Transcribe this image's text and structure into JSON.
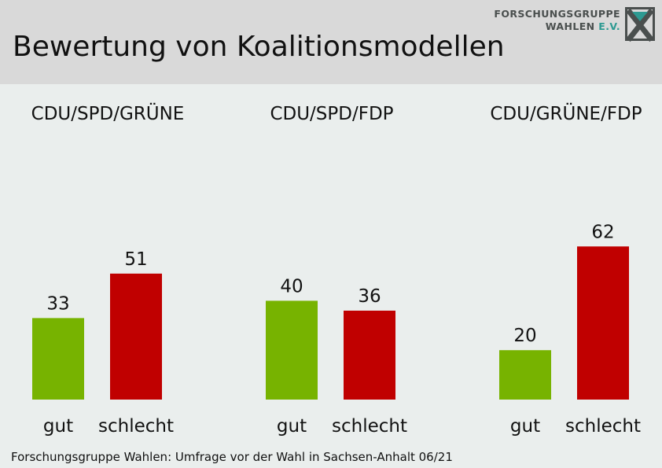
{
  "header": {
    "title": "Bewertung von Koalitionsmodellen",
    "logo": {
      "line1": "FORSCHUNGSGRUPPE",
      "line2": "WAHLEN",
      "line2_suffix": "E.V."
    }
  },
  "footer": {
    "source": "Forschungsgruppe Wahlen: Umfrage vor der Wahl in Sachsen-Anhalt 06/21"
  },
  "colors": {
    "gut": "#77b300",
    "schlecht": "#c00000",
    "header_bg": "#d9d9d9",
    "background": "#eaeeed",
    "logo_accent": "#2e9a92"
  },
  "chart_data": {
    "type": "bar",
    "categories": [
      "gut",
      "schlecht"
    ],
    "panels": [
      {
        "title": "CDU/SPD/GRÜNE",
        "values": [
          33,
          51
        ]
      },
      {
        "title": "CDU/SPD/FDP",
        "values": [
          40,
          36
        ]
      },
      {
        "title": "CDU/GRÜNE/FDP",
        "values": [
          20,
          62
        ]
      }
    ],
    "ylim": [
      0,
      100
    ],
    "grid": false,
    "xlabel": "",
    "ylabel": ""
  }
}
